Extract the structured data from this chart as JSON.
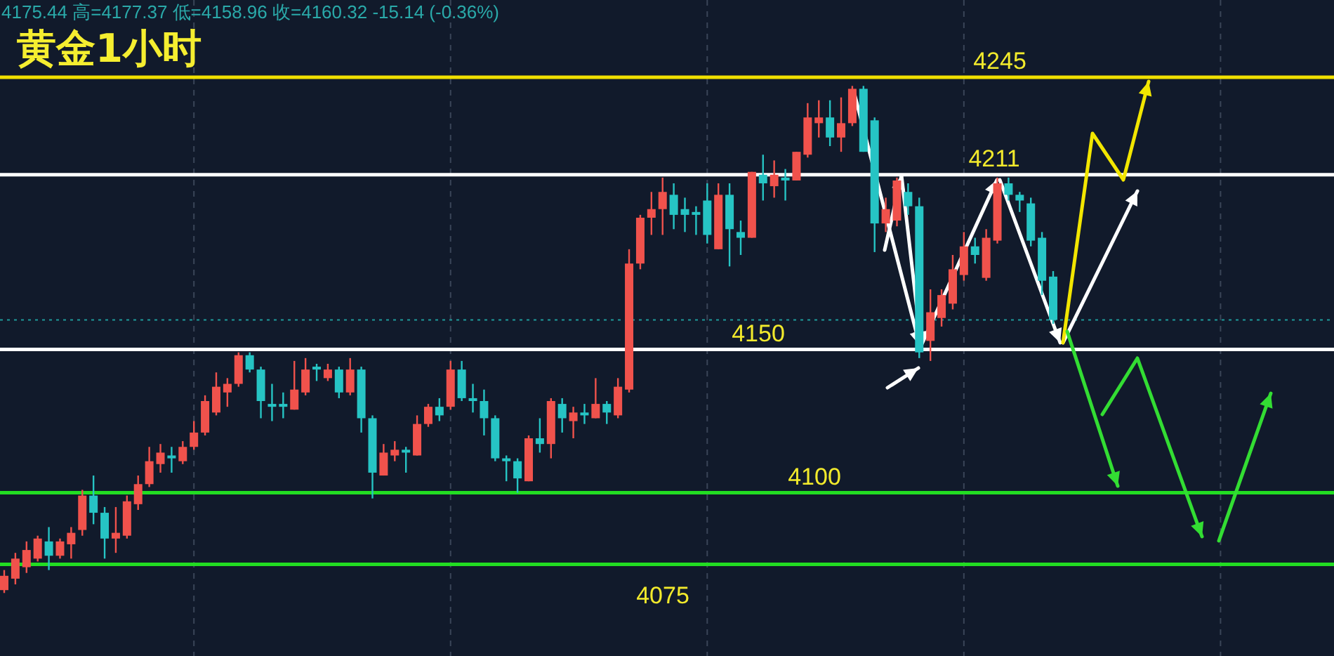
{
  "chart_data": {
    "type": "candlestick",
    "title": "黄金1小时",
    "annotations": [
      "4175.44 高=4177.37 低=4158.96 收=4160.32 -15.14 (-0.36%)"
    ],
    "categories": [
      null,
      null,
      null,
      null,
      null,
      null,
      null,
      null,
      null,
      null,
      null,
      null,
      null,
      null,
      null,
      null,
      null,
      null,
      null,
      null,
      null,
      null,
      null,
      null,
      null,
      null,
      null,
      null,
      null,
      null,
      null,
      null,
      null,
      null,
      null,
      null,
      null,
      null,
      null,
      null,
      null,
      null,
      null,
      null,
      null,
      null,
      null,
      null,
      null,
      null,
      null,
      null,
      null,
      null,
      null,
      null,
      null,
      null,
      null,
      null,
      null,
      null,
      null,
      null,
      null,
      null,
      null,
      null,
      null,
      null,
      null,
      null,
      null,
      null,
      null,
      null,
      null,
      null,
      null,
      null,
      null,
      null,
      null,
      null,
      null,
      null,
      null,
      null,
      null,
      null,
      null,
      null,
      null,
      null,
      null
    ],
    "ohlc": [
      [
        4066,
        4073,
        4065,
        4071
      ],
      [
        4070,
        4079,
        4068,
        4077
      ],
      [
        4074,
        4083,
        4072,
        4080
      ],
      [
        4077,
        4085,
        4076,
        4084
      ],
      [
        4083,
        4088,
        4073,
        4078
      ],
      [
        4078,
        4084,
        4077,
        4083
      ],
      [
        4082,
        4088,
        4077,
        4086
      ],
      [
        4087,
        4101,
        4085,
        4099
      ],
      [
        4099,
        4106,
        4089,
        4093
      ],
      [
        4093,
        4095,
        4077,
        4084
      ],
      [
        4084,
        4095,
        4079,
        4086
      ],
      [
        4085,
        4099,
        4084,
        4097
      ],
      [
        4096,
        4106,
        4094,
        4103
      ],
      [
        4103,
        4116,
        4102,
        4111
      ],
      [
        4110,
        4117,
        4107,
        4114
      ],
      [
        4113,
        4116,
        4107,
        4112
      ],
      [
        4111,
        4118,
        4110,
        4116
      ],
      [
        4116,
        4125,
        4115,
        4121
      ],
      [
        4121,
        4134,
        4120,
        4132
      ],
      [
        4128,
        4142,
        4127,
        4137
      ],
      [
        4135,
        4140,
        4130,
        4138
      ],
      [
        4138,
        4149,
        4137,
        4148
      ],
      [
        4148,
        4149,
        4142,
        4143
      ],
      [
        4143,
        4144,
        4126,
        4132
      ],
      [
        4131,
        4138,
        4125,
        4130
      ],
      [
        4131,
        4135,
        4126,
        4130
      ],
      [
        4129,
        4146,
        4129,
        4136
      ],
      [
        4135,
        4147,
        4134,
        4143
      ],
      [
        4144,
        4145,
        4139,
        4143
      ],
      [
        4140,
        4145,
        4139,
        4143
      ],
      [
        4143,
        4144,
        4133,
        4135
      ],
      [
        4135,
        4147,
        4134,
        4143
      ],
      [
        4143,
        4144,
        4121,
        4126
      ],
      [
        4126,
        4127,
        4098,
        4107
      ],
      [
        4106,
        4117,
        4106,
        4114
      ],
      [
        4113,
        4118,
        4111,
        4115
      ],
      [
        4115,
        4116,
        4107,
        4114
      ],
      [
        4113,
        4127,
        4113,
        4124
      ],
      [
        4124,
        4131,
        4123,
        4130
      ],
      [
        4130,
        4133,
        4125,
        4127
      ],
      [
        4130,
        4146,
        4129,
        4143
      ],
      [
        4143,
        4146,
        4132,
        4133
      ],
      [
        4133,
        4138,
        4128,
        4132
      ],
      [
        4132,
        4136,
        4120,
        4126
      ],
      [
        4126,
        4127,
        4111,
        4112
      ],
      [
        4112,
        4113,
        4104,
        4111
      ],
      [
        4111,
        4112,
        4100,
        4105
      ],
      [
        4104,
        4120,
        4104,
        4119
      ],
      [
        4119,
        4126,
        4114,
        4117
      ],
      [
        4117,
        4133,
        4112,
        4132
      ],
      [
        4131,
        4133,
        4121,
        4126
      ],
      [
        4125,
        4130,
        4119,
        4128
      ],
      [
        4128,
        4131,
        4124,
        4127
      ],
      [
        4126,
        4140,
        4126,
        4131
      ],
      [
        4131,
        4132,
        4124,
        4128
      ],
      [
        4127,
        4140,
        4126,
        4137
      ],
      [
        4136,
        4185,
        4135,
        4180
      ],
      [
        4180,
        4197,
        4178,
        4196
      ],
      [
        4196,
        4205,
        4190,
        4199
      ],
      [
        4199,
        4210,
        4190,
        4205
      ],
      [
        4204,
        4208,
        4192,
        4197
      ],
      [
        4199,
        4203,
        4191,
        4197
      ],
      [
        4198,
        4200,
        4190,
        4197
      ],
      [
        4202,
        4208,
        4187,
        4190
      ],
      [
        4185,
        4208,
        4185,
        4204
      ],
      [
        4204,
        4208,
        4179,
        4192
      ],
      [
        4191,
        4195,
        4183,
        4189
      ],
      [
        4189,
        4212,
        4189,
        4212
      ],
      [
        4211,
        4218,
        4202,
        4208
      ],
      [
        4207,
        4216,
        4203,
        4211
      ],
      [
        4210,
        4213,
        4202,
        4209
      ],
      [
        4209,
        4219,
        4209,
        4219
      ],
      [
        4218,
        4236,
        4217,
        4231
      ],
      [
        4229,
        4237,
        4224,
        4231
      ],
      [
        4231,
        4237,
        4221,
        4224
      ],
      [
        4224,
        4238,
        4219,
        4229
      ],
      [
        4229,
        4242,
        4228,
        4241
      ],
      [
        4241,
        4242,
        4219,
        4219
      ],
      [
        4230,
        4231,
        4184,
        4194
      ],
      [
        4194,
        4203,
        4191,
        4199
      ],
      [
        4195,
        4210,
        4193,
        4209
      ],
      [
        4205,
        4208,
        4197,
        4200
      ],
      [
        4200,
        4203,
        4147,
        4149
      ],
      [
        4153,
        4171,
        4146,
        4163
      ],
      [
        4161,
        4171,
        4158,
        4169
      ],
      [
        4166,
        4183,
        4164,
        4178
      ],
      [
        4176,
        4191,
        4174,
        4186
      ],
      [
        4186,
        4189,
        4180,
        4183
      ],
      [
        4175,
        4192,
        4174,
        4189
      ],
      [
        4188,
        4210,
        4187,
        4208
      ],
      [
        4208,
        4210,
        4202,
        4204
      ],
      [
        4204,
        4205,
        4198,
        4202
      ],
      [
        4201,
        4203,
        4186,
        4188
      ],
      [
        4189,
        4191,
        4169,
        4174
      ],
      [
        4175.44,
        4177.37,
        4158.96,
        4160.32
      ]
    ],
    "ylim": [
      4043,
      4272
    ],
    "ref_lines": [
      {
        "axis": "y",
        "value": 4245,
        "label": "4245",
        "color": "#f0e000"
      },
      {
        "axis": "y",
        "value": 4211,
        "label": "4211",
        "color": "#ffffff"
      },
      {
        "axis": "y",
        "value": 4150,
        "label": "4150",
        "color": "#ffffff"
      },
      {
        "axis": "y",
        "value": 4100,
        "label": "4100",
        "color": "#22dd22"
      },
      {
        "axis": "y",
        "value": 4075,
        "label": "4075",
        "color": "#22dd22"
      },
      {
        "axis": "y",
        "value": 4160.32,
        "label": null,
        "color": "#1f9a9a",
        "line_style": "dotted"
      }
    ],
    "grid": "x"
  }
}
